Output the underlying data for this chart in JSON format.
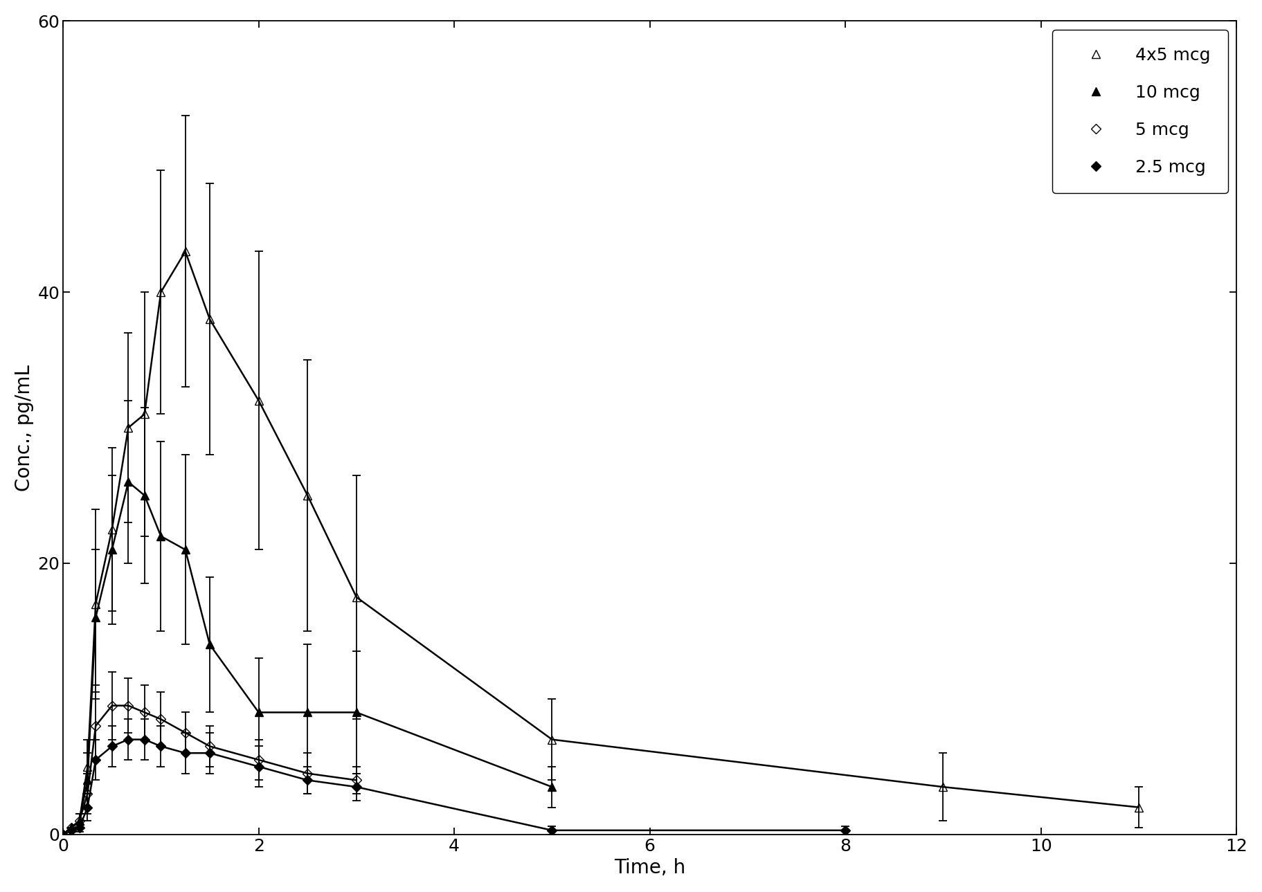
{
  "title": "",
  "xlabel": "Time, h",
  "ylabel": "Conc., pg/mL",
  "xlim": [
    0,
    12
  ],
  "ylim": [
    0,
    60
  ],
  "xticks": [
    0,
    2,
    4,
    6,
    8,
    10,
    12
  ],
  "yticks": [
    0,
    20,
    40,
    60
  ],
  "background_color": "#ffffff",
  "series": {
    "4x5 mcg": {
      "label": "4x5 mcg",
      "marker": "^",
      "fillstyle": "none",
      "color": "#000000",
      "linewidth": 1.8,
      "markersize": 9,
      "x": [
        0,
        0.083,
        0.167,
        0.25,
        0.333,
        0.5,
        0.667,
        0.833,
        1.0,
        1.25,
        1.5,
        2.0,
        2.5,
        3.0,
        5.0,
        9.0,
        11.0
      ],
      "y": [
        0,
        0.5,
        1.0,
        5.0,
        17.0,
        22.5,
        30.0,
        31.0,
        40.0,
        43.0,
        38.0,
        32.0,
        25.0,
        17.5,
        7.0,
        3.5,
        2.0
      ],
      "yerr": [
        0,
        0,
        0.5,
        2.0,
        7.0,
        6.0,
        7.0,
        9.0,
        9.0,
        10.0,
        10.0,
        11.0,
        10.0,
        9.0,
        3.0,
        2.5,
        1.5
      ]
    },
    "10 mcg": {
      "label": "10 mcg",
      "marker": "^",
      "fillstyle": "full",
      "color": "#000000",
      "linewidth": 1.8,
      "markersize": 9,
      "x": [
        0,
        0.083,
        0.167,
        0.25,
        0.333,
        0.5,
        0.667,
        0.833,
        1.0,
        1.25,
        1.5,
        2.0,
        2.5,
        3.0,
        5.0
      ],
      "y": [
        0,
        0.5,
        1.0,
        4.0,
        16.0,
        21.0,
        26.0,
        25.0,
        22.0,
        21.0,
        14.0,
        9.0,
        9.0,
        9.0,
        3.5
      ],
      "yerr": [
        0,
        0,
        0.5,
        2.0,
        5.0,
        5.5,
        6.0,
        6.5,
        7.0,
        7.0,
        5.0,
        4.0,
        5.0,
        4.5,
        1.5
      ]
    },
    "5 mcg": {
      "label": "5 mcg",
      "marker": "D",
      "fillstyle": "none",
      "color": "#000000",
      "linewidth": 1.8,
      "markersize": 7,
      "x": [
        0,
        0.083,
        0.167,
        0.25,
        0.333,
        0.5,
        0.667,
        0.833,
        1.0,
        1.25,
        1.5,
        2.0,
        2.5,
        3.0
      ],
      "y": [
        0,
        0.5,
        1.0,
        3.0,
        8.0,
        9.5,
        9.5,
        9.0,
        8.5,
        7.5,
        6.5,
        5.5,
        4.5,
        4.0
      ],
      "yerr": [
        0,
        0,
        0.5,
        1.5,
        2.5,
        2.5,
        2.0,
        2.0,
        2.0,
        1.5,
        1.5,
        1.5,
        1.5,
        1.0
      ]
    },
    "2.5 mcg": {
      "label": "2.5 mcg",
      "marker": "D",
      "fillstyle": "full",
      "color": "#000000",
      "linewidth": 1.8,
      "markersize": 7,
      "x": [
        0,
        0.083,
        0.167,
        0.25,
        0.333,
        0.5,
        0.667,
        0.833,
        1.0,
        1.25,
        1.5,
        2.0,
        2.5,
        3.0,
        5.0,
        8.0
      ],
      "y": [
        0,
        0.3,
        0.5,
        2.0,
        5.5,
        6.5,
        7.0,
        7.0,
        6.5,
        6.0,
        6.0,
        5.0,
        4.0,
        3.5,
        0.3,
        0.3
      ],
      "yerr": [
        0,
        0,
        0.3,
        1.0,
        1.5,
        1.5,
        1.5,
        1.5,
        1.5,
        1.5,
        1.5,
        1.5,
        1.0,
        1.0,
        0.3,
        0.3
      ]
    }
  },
  "legend_loc": "upper right",
  "figsize": [
    18.23,
    12.89
  ],
  "dpi": 100
}
